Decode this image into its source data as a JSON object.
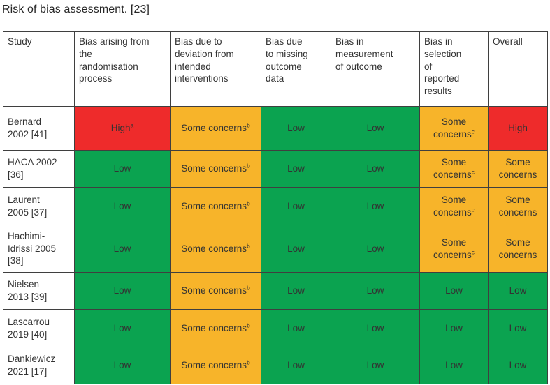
{
  "title": "Risk of bias assessment. [23]",
  "colors": {
    "high": "#EE2B2B",
    "some_concerns": "#F7B42A",
    "low": "#0BA350",
    "border": "#3F3F3F",
    "text": "#333333"
  },
  "table": {
    "headers": [
      "Study",
      "Bias arising from\nthe\nrandomisation\nprocess",
      "Bias due to\ndeviation from\nintended\ninterventions",
      "Bias due\nto missing\noutcome\ndata",
      "Bias in\nmeasurement\nof outcome",
      "Bias in\nselection\nof\nreported\nresults",
      "Overall"
    ],
    "rows": [
      {
        "study": "Bernard\n2002 [41]",
        "cells": [
          {
            "label": "High",
            "sup": "a",
            "level": "high"
          },
          {
            "label": "Some concerns",
            "sup": "b",
            "level": "some_concerns"
          },
          {
            "label": "Low",
            "sup": "",
            "level": "low"
          },
          {
            "label": "Low",
            "sup": "",
            "level": "low"
          },
          {
            "label": "Some concerns",
            "sup": "c",
            "level": "some_concerns"
          },
          {
            "label": "High",
            "sup": "",
            "level": "high"
          }
        ]
      },
      {
        "study": "HACA 2002\n[36]",
        "cells": [
          {
            "label": "Low",
            "sup": "",
            "level": "low"
          },
          {
            "label": "Some concerns",
            "sup": "b",
            "level": "some_concerns"
          },
          {
            "label": "Low",
            "sup": "",
            "level": "low"
          },
          {
            "label": "Low",
            "sup": "",
            "level": "low"
          },
          {
            "label": "Some concerns",
            "sup": "c",
            "level": "some_concerns"
          },
          {
            "label": "Some concerns",
            "sup": "",
            "level": "some_concerns"
          }
        ]
      },
      {
        "study": "Laurent\n2005 [37]",
        "cells": [
          {
            "label": "Low",
            "sup": "",
            "level": "low"
          },
          {
            "label": "Some concerns",
            "sup": "b",
            "level": "some_concerns"
          },
          {
            "label": "Low",
            "sup": "",
            "level": "low"
          },
          {
            "label": "Low",
            "sup": "",
            "level": "low"
          },
          {
            "label": "Some concerns",
            "sup": "c",
            "level": "some_concerns"
          },
          {
            "label": "Some concerns",
            "sup": "",
            "level": "some_concerns"
          }
        ]
      },
      {
        "study": "Hachimi-\nIdrissi 2005\n[38]",
        "cells": [
          {
            "label": "Low",
            "sup": "",
            "level": "low"
          },
          {
            "label": "Some concerns",
            "sup": "b",
            "level": "some_concerns"
          },
          {
            "label": "Low",
            "sup": "",
            "level": "low"
          },
          {
            "label": "Low",
            "sup": "",
            "level": "low"
          },
          {
            "label": "Some concerns",
            "sup": "c",
            "level": "some_concerns"
          },
          {
            "label": "Some concerns",
            "sup": "",
            "level": "some_concerns"
          }
        ]
      },
      {
        "study": "Nielsen\n2013 [39]",
        "cells": [
          {
            "label": "Low",
            "sup": "",
            "level": "low"
          },
          {
            "label": "Some concerns",
            "sup": "b",
            "level": "some_concerns"
          },
          {
            "label": "Low",
            "sup": "",
            "level": "low"
          },
          {
            "label": "Low",
            "sup": "",
            "level": "low"
          },
          {
            "label": "Low",
            "sup": "",
            "level": "low"
          },
          {
            "label": "Low",
            "sup": "",
            "level": "low"
          }
        ]
      },
      {
        "study": "Lascarrou\n2019 [40]",
        "cells": [
          {
            "label": "Low",
            "sup": "",
            "level": "low"
          },
          {
            "label": "Some concerns",
            "sup": "b",
            "level": "some_concerns"
          },
          {
            "label": "Low",
            "sup": "",
            "level": "low"
          },
          {
            "label": "Low",
            "sup": "",
            "level": "low"
          },
          {
            "label": "Low",
            "sup": "",
            "level": "low"
          },
          {
            "label": "Low",
            "sup": "",
            "level": "low"
          }
        ]
      },
      {
        "study": "Dankiewicz\n2021 [17]",
        "cells": [
          {
            "label": "Low",
            "sup": "",
            "level": "low"
          },
          {
            "label": "Some concerns",
            "sup": "b",
            "level": "some_concerns"
          },
          {
            "label": "Low",
            "sup": "",
            "level": "low"
          },
          {
            "label": "Low",
            "sup": "",
            "level": "low"
          },
          {
            "label": "Low",
            "sup": "",
            "level": "low"
          },
          {
            "label": "Low",
            "sup": "",
            "level": "low"
          }
        ]
      }
    ]
  }
}
